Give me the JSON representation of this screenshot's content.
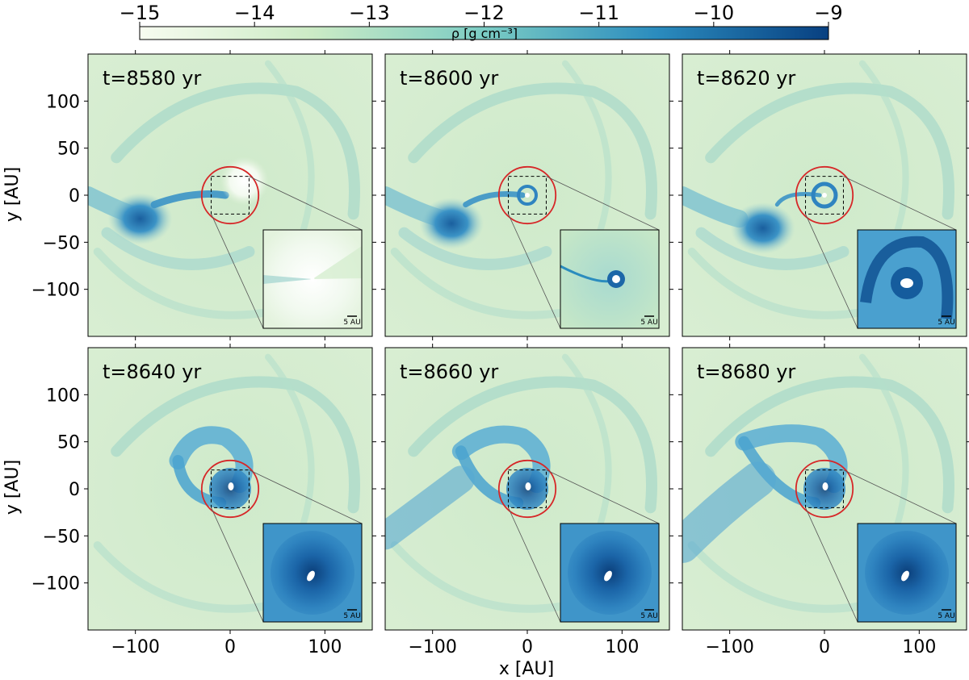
{
  "chart_data": {
    "type": "heatmap",
    "description_source": "density snapshots",
    "colorbar": {
      "label": "ρ [g cm⁻³]",
      "scale": "log10",
      "ticks": [
        "−15",
        "−14",
        "−13",
        "−12",
        "−11",
        "−10",
        "−9"
      ],
      "range": [
        -15,
        -9
      ],
      "colors": [
        "#f7fcf0",
        "#ccebc5",
        "#7bccc4",
        "#2b8cbe",
        "#084081"
      ]
    },
    "xlabel": "x [AU]",
    "ylabel": "y [AU]",
    "xlim": [
      -150,
      150
    ],
    "ylim": [
      -150,
      150
    ],
    "xticks": [
      {
        "v": -100,
        "t": "−100"
      },
      {
        "v": 0,
        "t": "0"
      },
      {
        "v": 100,
        "t": "100"
      }
    ],
    "yticks": [
      {
        "v": 100,
        "t": "100"
      },
      {
        "v": 50,
        "t": "50"
      },
      {
        "v": 0,
        "t": "0"
      },
      {
        "v": -50,
        "t": "−50"
      },
      {
        "v": -100,
        "t": "−100"
      }
    ],
    "zoom_box": {
      "xlim": [
        -20,
        20
      ],
      "ylim": [
        -20,
        20
      ]
    },
    "circle": {
      "center": [
        0,
        0
      ],
      "radius": 30,
      "color": "#d62728"
    },
    "inset_scale_label": "5 AU",
    "panels": [
      {
        "label": "t=8580 yr"
      },
      {
        "label": "t=8600 yr"
      },
      {
        "label": "t=8620 yr"
      },
      {
        "label": "t=8640 yr"
      },
      {
        "label": "t=8660 yr"
      },
      {
        "label": "t=8680 yr"
      }
    ]
  }
}
